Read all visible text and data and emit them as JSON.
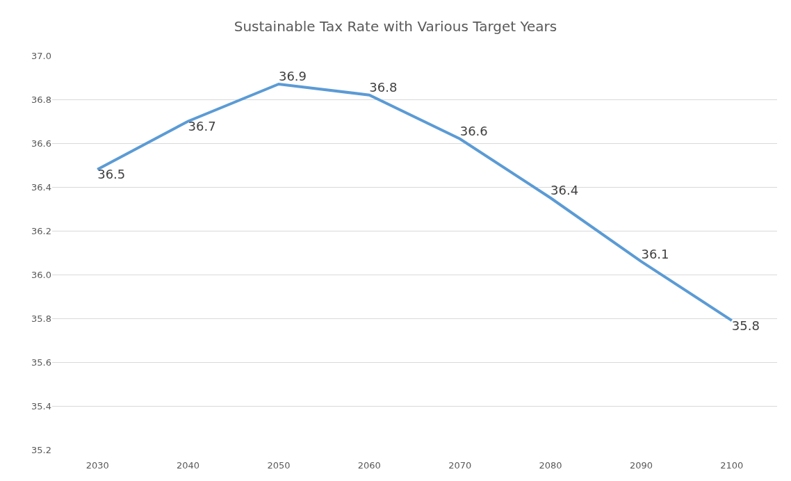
{
  "chart_data": {
    "type": "line",
    "title": "Sustainable Tax Rate with Various Target Years",
    "categories": [
      "2030",
      "2040",
      "2050",
      "2060",
      "2070",
      "2080",
      "2090",
      "2100"
    ],
    "series": [
      {
        "color": "#5b9bd5",
        "values": [
          36.48,
          36.7,
          36.87,
          36.82,
          36.62,
          36.35,
          36.06,
          35.79
        ],
        "value_labels": [
          "36.5",
          "36.7",
          "36.9",
          "36.8",
          "36.6",
          "36.4",
          "36.1",
          "35.8"
        ]
      }
    ],
    "ylim": [
      35.2,
      37.0
    ],
    "yticks": [
      {
        "value": 35.2,
        "label": "35.2"
      },
      {
        "value": 35.4,
        "label": "35.4"
      },
      {
        "value": 35.6,
        "label": "35.6"
      },
      {
        "value": 35.8,
        "label": "35.8"
      },
      {
        "value": 36.0,
        "label": "36.0"
      },
      {
        "value": 36.2,
        "label": "36.2"
      },
      {
        "value": 36.4,
        "label": "36.4"
      },
      {
        "value": 36.6,
        "label": "36.6"
      },
      {
        "value": 36.8,
        "label": "36.8"
      },
      {
        "value": 37.0,
        "label": "37.0"
      }
    ],
    "grid": "y",
    "marker": "none",
    "line_style": "solid"
  }
}
